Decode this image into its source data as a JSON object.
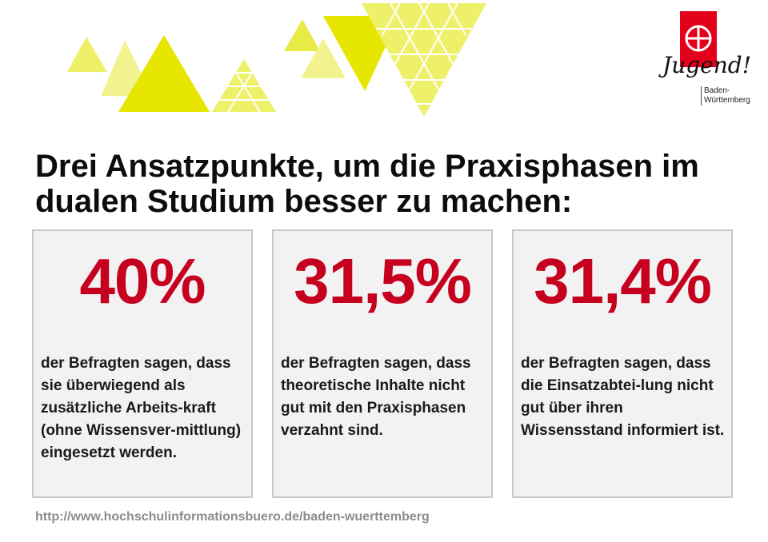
{
  "logo": {
    "script_text": "Jugend!",
    "region_line1": "Baden-",
    "region_line2": "Württemberg",
    "brand_color": "#e2001a"
  },
  "title": "Drei Ansatzpunkte, um die Praxisphasen im dualen Studium besser zu machen:",
  "panels": [
    {
      "percent": "40%",
      "text": "der Befragten sagen, dass sie überwiegend als zusätzliche Arbeits-kraft (ohne Wissensver-mittlung) eingesetzt werden."
    },
    {
      "percent": "31,5%",
      "text": "der Befragten sagen, dass theoretische Inhalte nicht gut mit den Praxisphasen verzahnt sind."
    },
    {
      "percent": "31,4%",
      "text": "der Befragten sagen, dass die Einsatzabtei-lung nicht gut über ihren Wissensstand informiert ist."
    }
  ],
  "url": "http://www.hochschulinformationsbuero.de/baden-wuerttemberg",
  "colors": {
    "accent_red": "#c6001f",
    "triangle_yellow": "#e6e600",
    "triangle_light": "#f0f07a",
    "panel_bg": "#f2f2f2"
  }
}
